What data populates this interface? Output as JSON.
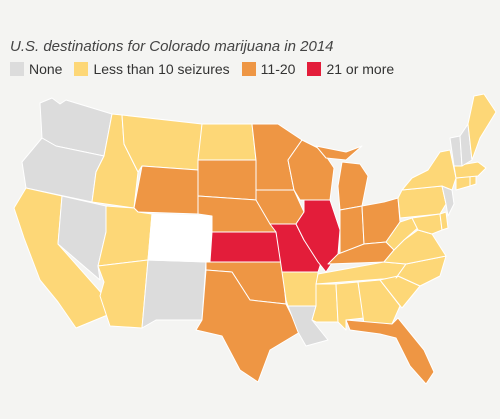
{
  "title": "U.S. destinations for Colorado marijuana in 2014",
  "colors": {
    "none": "#dcdcdc",
    "lt10": "#fdd777",
    "r1120": "#ee9644",
    "gte21": "#e31d3a",
    "origin": "#ffffff",
    "background": "#f4f4f2",
    "border": "#ffffff"
  },
  "legend": [
    {
      "key": "none",
      "label": "None"
    },
    {
      "key": "lt10",
      "label": "Less than 10 seizures"
    },
    {
      "key": "r1120",
      "label": "11-20"
    },
    {
      "key": "gte21",
      "label": "21 or more"
    }
  ],
  "states": {
    "WA": "none",
    "OR": "none",
    "CA": "lt10",
    "NV": "none",
    "ID": "lt10",
    "MT": "lt10",
    "WY": "r1120",
    "UT": "lt10",
    "AZ": "lt10",
    "NM": "none",
    "CO": "origin",
    "ND": "lt10",
    "SD": "r1120",
    "NE": "r1120",
    "KS": "gte21",
    "OK": "r1120",
    "TX": "r1120",
    "MN": "r1120",
    "IA": "r1120",
    "MO": "gte21",
    "AR": "lt10",
    "LA": "none",
    "WI": "r1120",
    "IL": "gte21",
    "MI": "r1120",
    "IN": "r1120",
    "OH": "r1120",
    "KY": "r1120",
    "TN": "lt10",
    "MS": "lt10",
    "AL": "lt10",
    "GA": "lt10",
    "FL": "r1120",
    "SC": "lt10",
    "NC": "lt10",
    "VA": "lt10",
    "WV": "lt10",
    "PA": "lt10",
    "NY": "lt10",
    "MD": "lt10",
    "DE": "lt10",
    "NJ": "none",
    "CT": "lt10",
    "RI": "lt10",
    "MA": "lt10",
    "VT": "none",
    "NH": "none",
    "ME": "lt10"
  }
}
